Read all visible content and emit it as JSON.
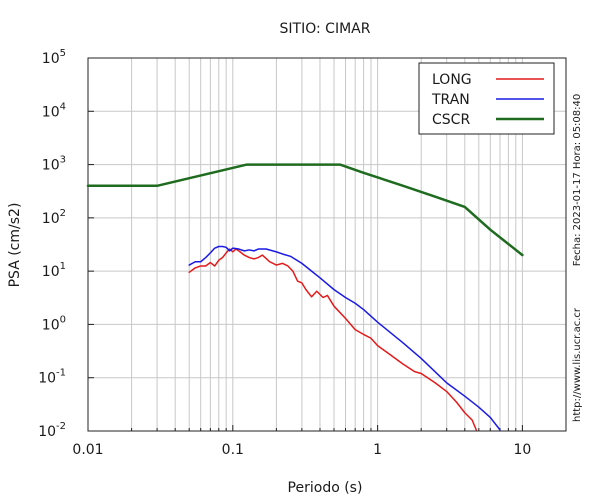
{
  "chart_data": {
    "type": "line",
    "title": "SITIO: CIMAR",
    "xlabel": "Periodo (s)",
    "ylabel": "PSA (cm/s2)",
    "xscale": "log",
    "yscale": "log",
    "xlim": [
      0.01,
      20
    ],
    "ylim": [
      0.01,
      100000
    ],
    "grid": true,
    "legend_position": "top-right",
    "x_ticks": [
      {
        "value": 0.01,
        "label": "0.01"
      },
      {
        "value": 0.1,
        "label": "0.1"
      },
      {
        "value": 1,
        "label": "1"
      },
      {
        "value": 10,
        "label": "10"
      }
    ],
    "y_ticks": [
      {
        "value": 0.01,
        "base": "10",
        "exp": "-2"
      },
      {
        "value": 0.1,
        "base": "10",
        "exp": "-1"
      },
      {
        "value": 1,
        "base": "10",
        "exp": "0"
      },
      {
        "value": 10,
        "base": "10",
        "exp": "1"
      },
      {
        "value": 100,
        "base": "10",
        "exp": "2"
      },
      {
        "value": 1000,
        "base": "10",
        "exp": "3"
      },
      {
        "value": 10000,
        "base": "10",
        "exp": "4"
      },
      {
        "value": 100000,
        "base": "10",
        "exp": "5"
      }
    ],
    "series": [
      {
        "name": "LONG",
        "color": "#e41a1a",
        "points": [
          [
            0.05,
            9.5
          ],
          [
            0.055,
            11.5
          ],
          [
            0.06,
            12.5
          ],
          [
            0.065,
            12.5
          ],
          [
            0.07,
            14.5
          ],
          [
            0.075,
            12.5
          ],
          [
            0.08,
            16
          ],
          [
            0.085,
            18
          ],
          [
            0.09,
            22
          ],
          [
            0.095,
            26
          ],
          [
            0.1,
            23
          ],
          [
            0.105,
            26
          ],
          [
            0.11,
            24
          ],
          [
            0.12,
            20
          ],
          [
            0.13,
            18
          ],
          [
            0.14,
            17
          ],
          [
            0.15,
            18
          ],
          [
            0.16,
            20
          ],
          [
            0.18,
            15
          ],
          [
            0.2,
            13
          ],
          [
            0.22,
            14
          ],
          [
            0.24,
            12.5
          ],
          [
            0.26,
            10
          ],
          [
            0.28,
            6.5
          ],
          [
            0.3,
            6
          ],
          [
            0.32,
            4.5
          ],
          [
            0.35,
            3.3
          ],
          [
            0.38,
            4.2
          ],
          [
            0.42,
            3.2
          ],
          [
            0.45,
            3.5
          ],
          [
            0.5,
            2.2
          ],
          [
            0.6,
            1.3
          ],
          [
            0.7,
            0.8
          ],
          [
            0.8,
            0.65
          ],
          [
            0.9,
            0.55
          ],
          [
            1,
            0.4
          ],
          [
            1.2,
            0.28
          ],
          [
            1.5,
            0.18
          ],
          [
            1.8,
            0.13
          ],
          [
            2,
            0.12
          ],
          [
            2.5,
            0.08
          ],
          [
            3,
            0.055
          ],
          [
            3.5,
            0.035
          ],
          [
            4,
            0.022
          ],
          [
            4.5,
            0.016
          ],
          [
            4.8,
            0.0105
          ]
        ]
      },
      {
        "name": "TRAN",
        "color": "#1a1ae6",
        "points": [
          [
            0.05,
            13
          ],
          [
            0.055,
            15
          ],
          [
            0.06,
            15
          ],
          [
            0.065,
            18
          ],
          [
            0.07,
            22
          ],
          [
            0.075,
            27
          ],
          [
            0.08,
            29
          ],
          [
            0.085,
            29
          ],
          [
            0.09,
            28
          ],
          [
            0.095,
            24
          ],
          [
            0.1,
            27
          ],
          [
            0.11,
            26
          ],
          [
            0.12,
            24
          ],
          [
            0.13,
            25
          ],
          [
            0.14,
            24
          ],
          [
            0.15,
            26
          ],
          [
            0.17,
            26
          ],
          [
            0.2,
            23
          ],
          [
            0.22,
            21
          ],
          [
            0.25,
            19
          ],
          [
            0.3,
            14
          ],
          [
            0.35,
            10
          ],
          [
            0.4,
            7.5
          ],
          [
            0.5,
            4.5
          ],
          [
            0.6,
            3.2
          ],
          [
            0.7,
            2.5
          ],
          [
            0.8,
            1.9
          ],
          [
            1,
            1.1
          ],
          [
            1.5,
            0.45
          ],
          [
            2,
            0.23
          ],
          [
            3,
            0.08
          ],
          [
            4,
            0.045
          ],
          [
            5,
            0.028
          ],
          [
            6,
            0.018
          ],
          [
            7,
            0.0105
          ]
        ]
      },
      {
        "name": "CSCR",
        "color": "#1f6b1f",
        "points": [
          [
            0.01,
            400
          ],
          [
            0.03,
            400
          ],
          [
            0.125,
            1000
          ],
          [
            0.55,
            1000
          ],
          [
            0.8,
            700
          ],
          [
            1.5,
            400
          ],
          [
            2.5,
            250
          ],
          [
            4,
            160
          ],
          [
            6,
            60
          ],
          [
            10,
            20
          ]
        ]
      }
    ],
    "side_labels": {
      "right_top": "Fecha: 2023-01-17  Hora: 05:08:40",
      "right_bottom": "http://www.lis.ucr.ac.cr"
    }
  }
}
